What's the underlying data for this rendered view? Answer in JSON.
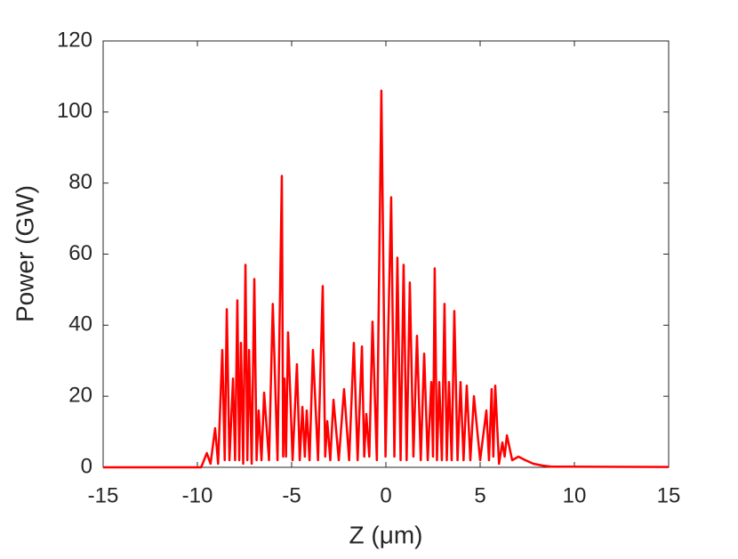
{
  "chart_data": {
    "type": "line",
    "xlabel": "Z (μm)",
    "ylabel": "Power (GW)",
    "color": "#ff0000",
    "x": [
      -15,
      -9.8,
      -9.5,
      -9.3,
      -9.06,
      -8.9,
      -8.68,
      -8.55,
      -8.44,
      -8.3,
      -8.11,
      -8.0,
      -7.88,
      -7.78,
      -7.69,
      -7.57,
      -7.45,
      -7.35,
      -7.26,
      -7.12,
      -6.98,
      -6.86,
      -6.75,
      -6.6,
      -6.46,
      -6.2,
      -6.0,
      -5.75,
      -5.52,
      -5.45,
      -5.38,
      -5.3,
      -5.19,
      -4.95,
      -4.72,
      -4.57,
      -4.43,
      -4.3,
      -4.2,
      -4.05,
      -3.87,
      -3.6,
      -3.35,
      -3.22,
      -3.11,
      -2.95,
      -2.78,
      -2.5,
      -2.22,
      -1.95,
      -1.7,
      -1.5,
      -1.27,
      -1.15,
      -1.04,
      -0.88,
      -0.71,
      -0.48,
      -0.24,
      -0.02,
      0.28,
      0.45,
      0.61,
      0.78,
      0.94,
      1.1,
      1.27,
      1.46,
      1.65,
      1.85,
      2.03,
      2.22,
      2.41,
      2.5,
      2.59,
      2.71,
      2.83,
      2.97,
      3.11,
      3.23,
      3.35,
      3.49,
      3.63,
      3.8,
      3.96,
      4.12,
      4.29,
      4.48,
      4.67,
      5.0,
      5.33,
      5.47,
      5.61,
      5.7,
      5.8,
      6.0,
      6.18,
      6.3,
      6.42,
      6.7,
      7.03,
      7.4,
      7.83,
      8.3,
      8.77,
      15
    ],
    "values": [
      0,
      0,
      4,
      1,
      11,
      1,
      33,
      2,
      44.5,
      2,
      25,
      2,
      47,
      2,
      35,
      1,
      57,
      2,
      33,
      1,
      53,
      2,
      16,
      2,
      21,
      2,
      46,
      2,
      82,
      3,
      25,
      3,
      38,
      2,
      29,
      2,
      17,
      3,
      16,
      2,
      33,
      2,
      51,
      3,
      13,
      2,
      19,
      2,
      22,
      2,
      35,
      2,
      34,
      3,
      15,
      3,
      41,
      2,
      106,
      3,
      76,
      3,
      59,
      2,
      57,
      2,
      52,
      3,
      37,
      2,
      32,
      2,
      24,
      3,
      56,
      2,
      24,
      2,
      46,
      2,
      24,
      2,
      44,
      2,
      24,
      2,
      23,
      2,
      20,
      2,
      16,
      2,
      22,
      3,
      23,
      1,
      7,
      3,
      9,
      2,
      3,
      2,
      1,
      0.5,
      0.2,
      0.1
    ],
    "xlim": [
      -15,
      15
    ],
    "xticks": [
      -15,
      -10,
      -5,
      0,
      5,
      10,
      15
    ],
    "ylim": [
      0,
      120
    ],
    "yticks": [
      0,
      20,
      40,
      60,
      80,
      100,
      120
    ],
    "grid": false
  }
}
